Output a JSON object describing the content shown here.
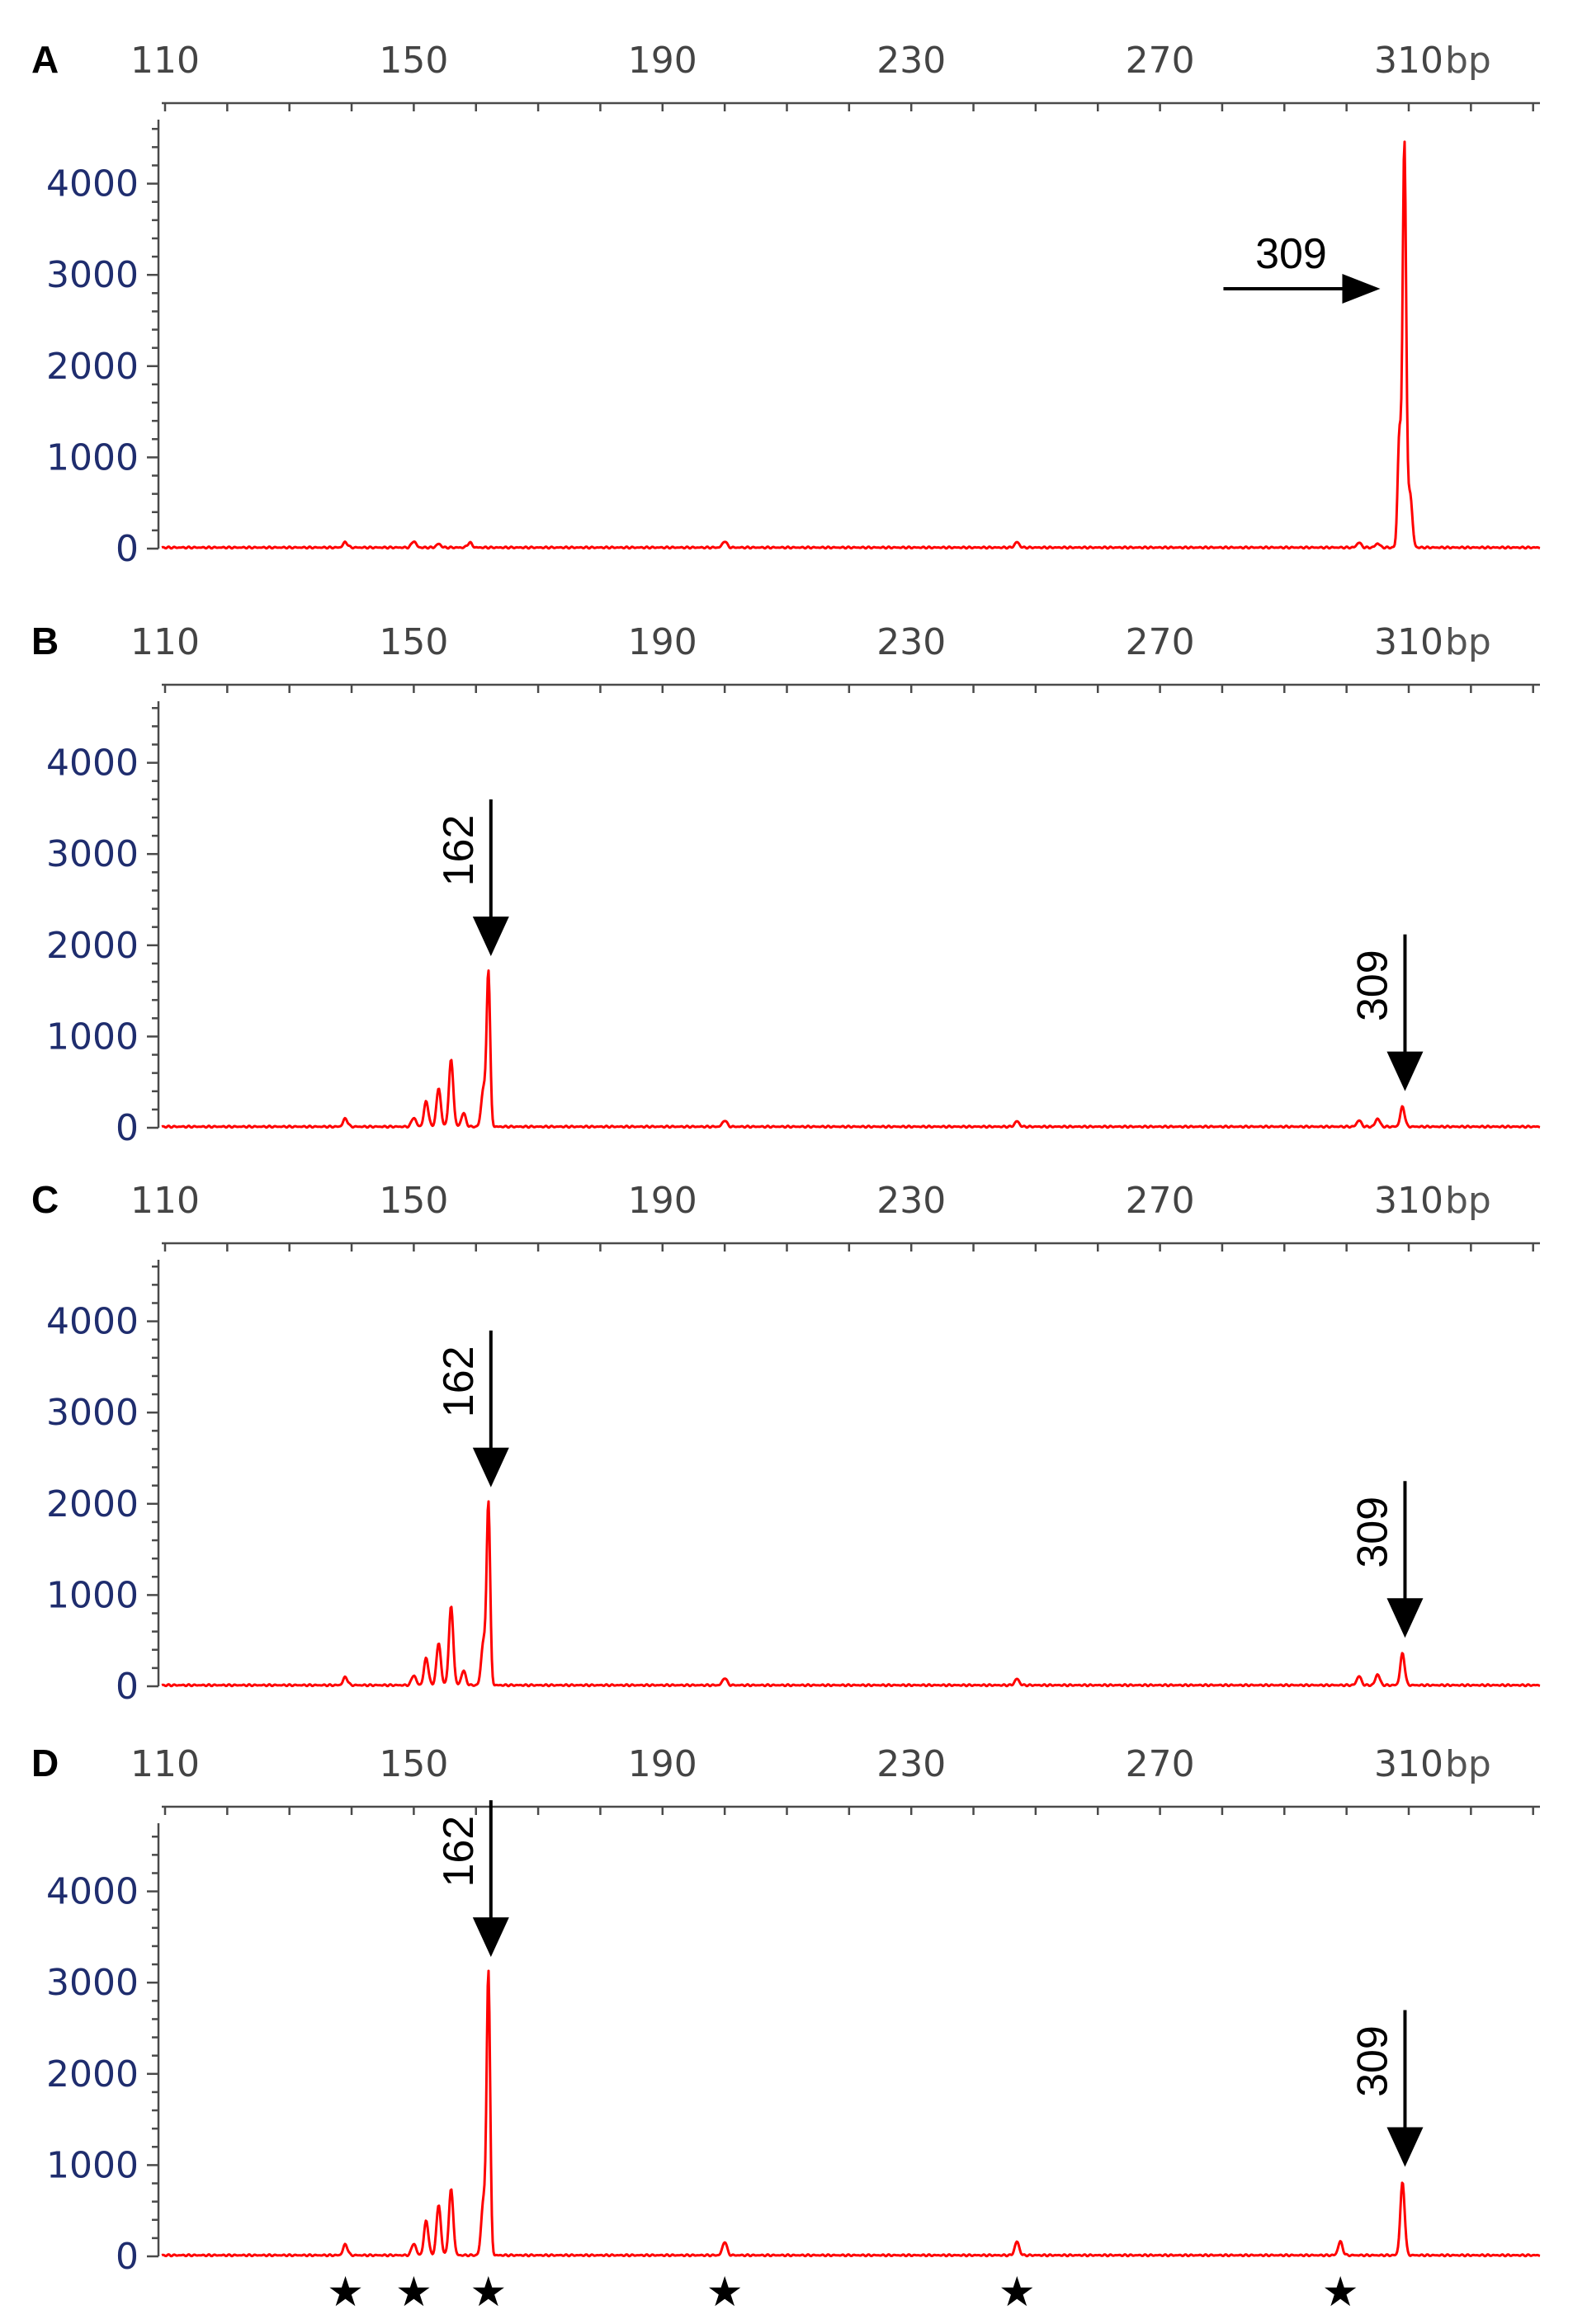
{
  "chart_data": [
    {
      "panel": "A",
      "type": "line",
      "x_tick_labels": [
        "110",
        "150",
        "190",
        "230",
        "270",
        "310"
      ],
      "x_unit": "bp",
      "y_tick_labels": [
        "0",
        "1000",
        "2000",
        "3000",
        "4000"
      ],
      "xlim": [
        110,
        330
      ],
      "ylim": [
        0,
        4700
      ],
      "series": [
        {
          "color": "#ff0000",
          "peaks": [
            {
              "x": 139,
              "y": 60
            },
            {
              "x": 150,
              "y": 70
            },
            {
              "x": 154,
              "y": 40
            },
            {
              "x": 159,
              "y": 55
            },
            {
              "x": 200,
              "y": 70
            },
            {
              "x": 247,
              "y": 60
            },
            {
              "x": 302,
              "y": 55
            },
            {
              "x": 305,
              "y": 45
            },
            {
              "x": 308.5,
              "y": 1250
            },
            {
              "x": 309.3,
              "y": 4450
            },
            {
              "x": 310.2,
              "y": 600
            }
          ]
        }
      ],
      "annotations": [
        {
          "label": "309",
          "x": 309,
          "direction": "right"
        }
      ],
      "markers": []
    },
    {
      "panel": "B",
      "type": "line",
      "x_tick_labels": [
        "110",
        "150",
        "190",
        "230",
        "270",
        "310"
      ],
      "x_unit": "bp",
      "y_tick_labels": [
        "0",
        "1000",
        "2000",
        "3000",
        "4000"
      ],
      "xlim": [
        110,
        330
      ],
      "ylim": [
        0,
        4700
      ],
      "series": [
        {
          "color": "#ff0000",
          "peaks": [
            {
              "x": 139,
              "y": 90
            },
            {
              "x": 150,
              "y": 100
            },
            {
              "x": 152,
              "y": 280
            },
            {
              "x": 154,
              "y": 420
            },
            {
              "x": 156,
              "y": 730
            },
            {
              "x": 158,
              "y": 150
            },
            {
              "x": 161.2,
              "y": 420
            },
            {
              "x": 162,
              "y": 1700
            },
            {
              "x": 200,
              "y": 70
            },
            {
              "x": 247,
              "y": 60
            },
            {
              "x": 302,
              "y": 70
            },
            {
              "x": 305,
              "y": 90
            },
            {
              "x": 309,
              "y": 220
            }
          ]
        }
      ],
      "annotations": [
        {
          "label": "162",
          "x": 162,
          "direction": "down"
        },
        {
          "label": "309",
          "x": 309,
          "direction": "down"
        }
      ],
      "markers": []
    },
    {
      "panel": "C",
      "type": "line",
      "x_tick_labels": [
        "110",
        "150",
        "190",
        "230",
        "270",
        "310"
      ],
      "x_unit": "bp",
      "y_tick_labels": [
        "0",
        "1000",
        "2000",
        "3000",
        "4000"
      ],
      "xlim": [
        110,
        330
      ],
      "ylim": [
        0,
        4700
      ],
      "series": [
        {
          "color": "#ff0000",
          "peaks": [
            {
              "x": 139,
              "y": 90
            },
            {
              "x": 150,
              "y": 110
            },
            {
              "x": 152,
              "y": 300
            },
            {
              "x": 154,
              "y": 460
            },
            {
              "x": 156,
              "y": 860
            },
            {
              "x": 158,
              "y": 160
            },
            {
              "x": 161.2,
              "y": 480
            },
            {
              "x": 162,
              "y": 2000
            },
            {
              "x": 200,
              "y": 80
            },
            {
              "x": 247,
              "y": 70
            },
            {
              "x": 302,
              "y": 100
            },
            {
              "x": 305,
              "y": 120
            },
            {
              "x": 309,
              "y": 350
            }
          ]
        }
      ],
      "annotations": [
        {
          "label": "162",
          "x": 162,
          "direction": "down"
        },
        {
          "label": "309",
          "x": 309,
          "direction": "down"
        }
      ],
      "markers": []
    },
    {
      "panel": "D",
      "type": "line",
      "x_tick_labels": [
        "110",
        "150",
        "190",
        "230",
        "270",
        "310"
      ],
      "x_unit": "bp",
      "y_tick_labels": [
        "0",
        "1000",
        "2000",
        "3000",
        "4000"
      ],
      "xlim": [
        110,
        330
      ],
      "ylim": [
        0,
        4700
      ],
      "series": [
        {
          "color": "#ff0000",
          "peaks": [
            {
              "x": 139,
              "y": 120
            },
            {
              "x": 150,
              "y": 130
            },
            {
              "x": 152,
              "y": 380
            },
            {
              "x": 154,
              "y": 550
            },
            {
              "x": 156,
              "y": 720
            },
            {
              "x": 161.2,
              "y": 600
            },
            {
              "x": 162,
              "y": 3100
            },
            {
              "x": 200,
              "y": 150
            },
            {
              "x": 247,
              "y": 150
            },
            {
              "x": 299,
              "y": 150
            },
            {
              "x": 309,
              "y": 800
            }
          ]
        }
      ],
      "annotations": [
        {
          "label": "162",
          "x": 162,
          "direction": "down"
        },
        {
          "label": "309",
          "x": 309,
          "direction": "down"
        }
      ],
      "markers": [
        {
          "label": "★",
          "x": 139
        },
        {
          "label": "★",
          "x": 150
        },
        {
          "label": "★",
          "x": 162
        },
        {
          "label": "★",
          "x": 200
        },
        {
          "label": "★",
          "x": 247
        },
        {
          "label": "★",
          "x": 299
        }
      ]
    }
  ]
}
